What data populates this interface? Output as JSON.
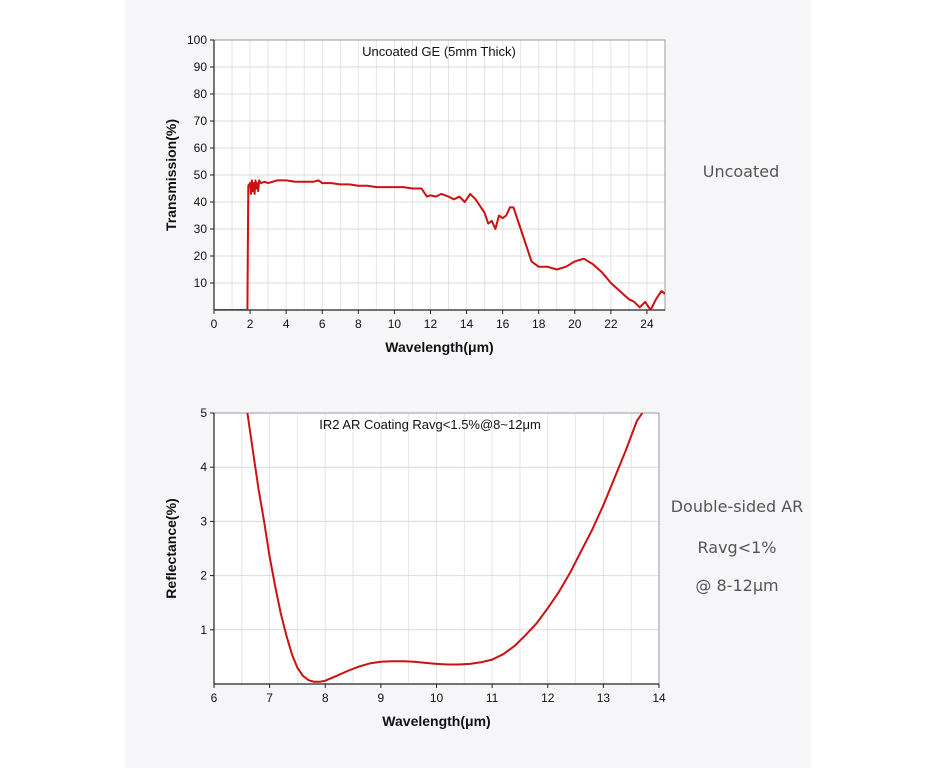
{
  "chart_data": [
    {
      "type": "line",
      "title": "Uncoated GE (5mm Thick)",
      "xlabel": "Wavelength(μm)",
      "ylabel": "Transmission(%)",
      "xlim": [
        0,
        25
      ],
      "ylim": [
        0,
        100
      ],
      "xticks": [
        0,
        2,
        4,
        6,
        8,
        10,
        12,
        14,
        16,
        18,
        20,
        22,
        24
      ],
      "yticks": [
        10,
        20,
        30,
        40,
        50,
        60,
        70,
        80,
        90,
        100
      ],
      "grid": true,
      "line_color": "#cc1111",
      "series": [
        {
          "x": [
            0,
            1.8,
            1.85,
            1.9,
            2.0,
            2.05,
            2.1,
            2.15,
            2.2,
            2.25,
            2.3,
            2.35,
            2.4,
            2.45,
            2.5,
            2.6,
            2.8,
            3.0,
            3.5,
            4.0,
            4.5,
            5.0,
            5.5,
            5.8,
            6.0,
            6.5,
            7.0,
            7.5,
            8.0,
            8.5,
            9.0,
            9.5,
            10.0,
            10.5,
            11.0,
            11.5,
            11.8,
            12.0,
            12.3,
            12.6,
            13.0,
            13.3,
            13.6,
            13.9,
            14.2,
            14.5,
            14.8,
            15.0,
            15.2,
            15.4,
            15.6,
            15.8,
            16.0,
            16.2,
            16.4,
            16.6,
            16.8,
            17.0,
            17.3,
            17.6,
            18.0,
            18.5,
            19.0,
            19.5,
            20.0,
            20.5,
            21.0,
            21.5,
            22.0,
            22.5,
            23.0,
            23.3,
            23.6,
            23.9,
            24.2,
            24.5,
            24.8,
            25.0
          ],
          "values": [
            0,
            0,
            0,
            46,
            47,
            43,
            48,
            44,
            47,
            43,
            48,
            45,
            47,
            44,
            48,
            47,
            47.5,
            47,
            48,
            48,
            47.5,
            47.5,
            47.5,
            48,
            47,
            47,
            46.5,
            46.5,
            46,
            46,
            45.5,
            45.5,
            45.5,
            45.5,
            45,
            45,
            42,
            42.5,
            42,
            43,
            42,
            41,
            42,
            40,
            43,
            41,
            38,
            36,
            32,
            33,
            30,
            35,
            34,
            35,
            38,
            38,
            34,
            30,
            24,
            18,
            16,
            16,
            15,
            16,
            18,
            19,
            17,
            14,
            10,
            7,
            4,
            3,
            1,
            3,
            0,
            4,
            7,
            6
          ]
        }
      ]
    },
    {
      "type": "line",
      "title": "IR2 AR Coating Ravg<1.5%@8~12μm",
      "xlabel": "Wavelength(μm)",
      "ylabel": "Reflectance(%)",
      "xlim": [
        6,
        14
      ],
      "ylim": [
        0,
        5
      ],
      "xticks": [
        6,
        7,
        8,
        9,
        10,
        11,
        12,
        13,
        14
      ],
      "yticks": [
        1,
        2,
        3,
        4,
        5
      ],
      "grid": true,
      "line_color": "#cc1111",
      "series": [
        {
          "x": [
            6.6,
            6.7,
            6.8,
            6.9,
            7.0,
            7.1,
            7.2,
            7.3,
            7.4,
            7.5,
            7.6,
            7.7,
            7.8,
            7.9,
            8.0,
            8.2,
            8.4,
            8.6,
            8.8,
            9.0,
            9.2,
            9.4,
            9.6,
            9.8,
            10.0,
            10.2,
            10.4,
            10.6,
            10.8,
            11.0,
            11.2,
            11.4,
            11.6,
            11.8,
            12.0,
            12.2,
            12.4,
            12.6,
            12.8,
            13.0,
            13.2,
            13.4,
            13.6,
            13.7
          ],
          "values": [
            5.0,
            4.3,
            3.6,
            3.0,
            2.35,
            1.8,
            1.3,
            0.9,
            0.55,
            0.3,
            0.15,
            0.07,
            0.04,
            0.04,
            0.06,
            0.15,
            0.24,
            0.32,
            0.38,
            0.41,
            0.42,
            0.42,
            0.41,
            0.39,
            0.37,
            0.36,
            0.36,
            0.37,
            0.4,
            0.45,
            0.55,
            0.7,
            0.9,
            1.12,
            1.4,
            1.7,
            2.05,
            2.45,
            2.85,
            3.3,
            3.8,
            4.3,
            4.85,
            5.0
          ]
        }
      ]
    }
  ],
  "side_labels": {
    "top": "Uncoated",
    "bottom_line1": "Double-sided AR",
    "bottom_line2": "Ravg<1%",
    "bottom_line3": "@ 8-12μm"
  }
}
